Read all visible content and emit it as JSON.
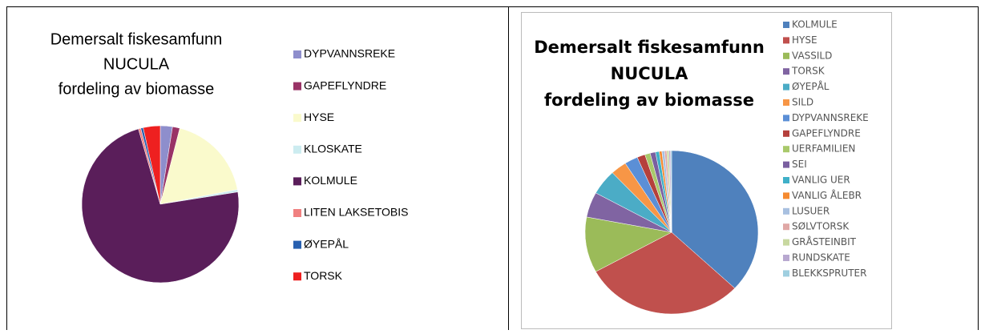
{
  "chart_data": [
    {
      "type": "pie",
      "title": [
        "Demersalt fiskesamfunn",
        "NUCULA",
        "fordeling av biomasse"
      ],
      "categories": [
        "DYPVANNSREKE",
        "GAPEFLYNDRE",
        "HYSE",
        "KLOSKATE",
        "KOLMULE",
        "LITEN LAKSETOBIS",
        "ØYEPÅL",
        "TORSK"
      ],
      "values": [
        2.5,
        1.5,
        18,
        0.5,
        73,
        0.5,
        0.5,
        3.5
      ],
      "colors": [
        "#8e8ecc",
        "#993366",
        "#fafacc",
        "#ccecf0",
        "#5a1e5a",
        "#f08080",
        "#2860b0",
        "#ee2020"
      ]
    },
    {
      "type": "pie",
      "title": [
        "Demersalt fiskesamfunn",
        "NUCULA",
        "fordeling av biomasse"
      ],
      "categories": [
        "KOLMULE",
        "HYSE",
        "VASSILD",
        "TORSK",
        "ØYEPÅL",
        "SILD",
        "DYPVANNSREKE",
        "GAPEFLYNDRE",
        "UERFAMILIEN",
        "SEI",
        "VANLIG UER",
        "VANLIG ÅLEBR",
        "LUSUER",
        "SØLVTORSK",
        "GRÅSTEINBIT",
        "RUNDSKATE",
        "BLEKKSPRUTER"
      ],
      "values": [
        37,
        30,
        11,
        5,
        5,
        3,
        2.5,
        1.5,
        1,
        1,
        0.7,
        0.5,
        0.5,
        0.4,
        0.4,
        0.3,
        0.2
      ],
      "colors": [
        "#4f81bd",
        "#c0504d",
        "#9bbb59",
        "#8064a2",
        "#4bacc6",
        "#f79646",
        "#5b8fd6",
        "#b5403c",
        "#a9c96b",
        "#7a5fa0",
        "#3fb0c8",
        "#f58a30",
        "#a8c0e0",
        "#e0a8a6",
        "#c8d8a0",
        "#b8a8d0",
        "#9fcfe0"
      ]
    }
  ]
}
